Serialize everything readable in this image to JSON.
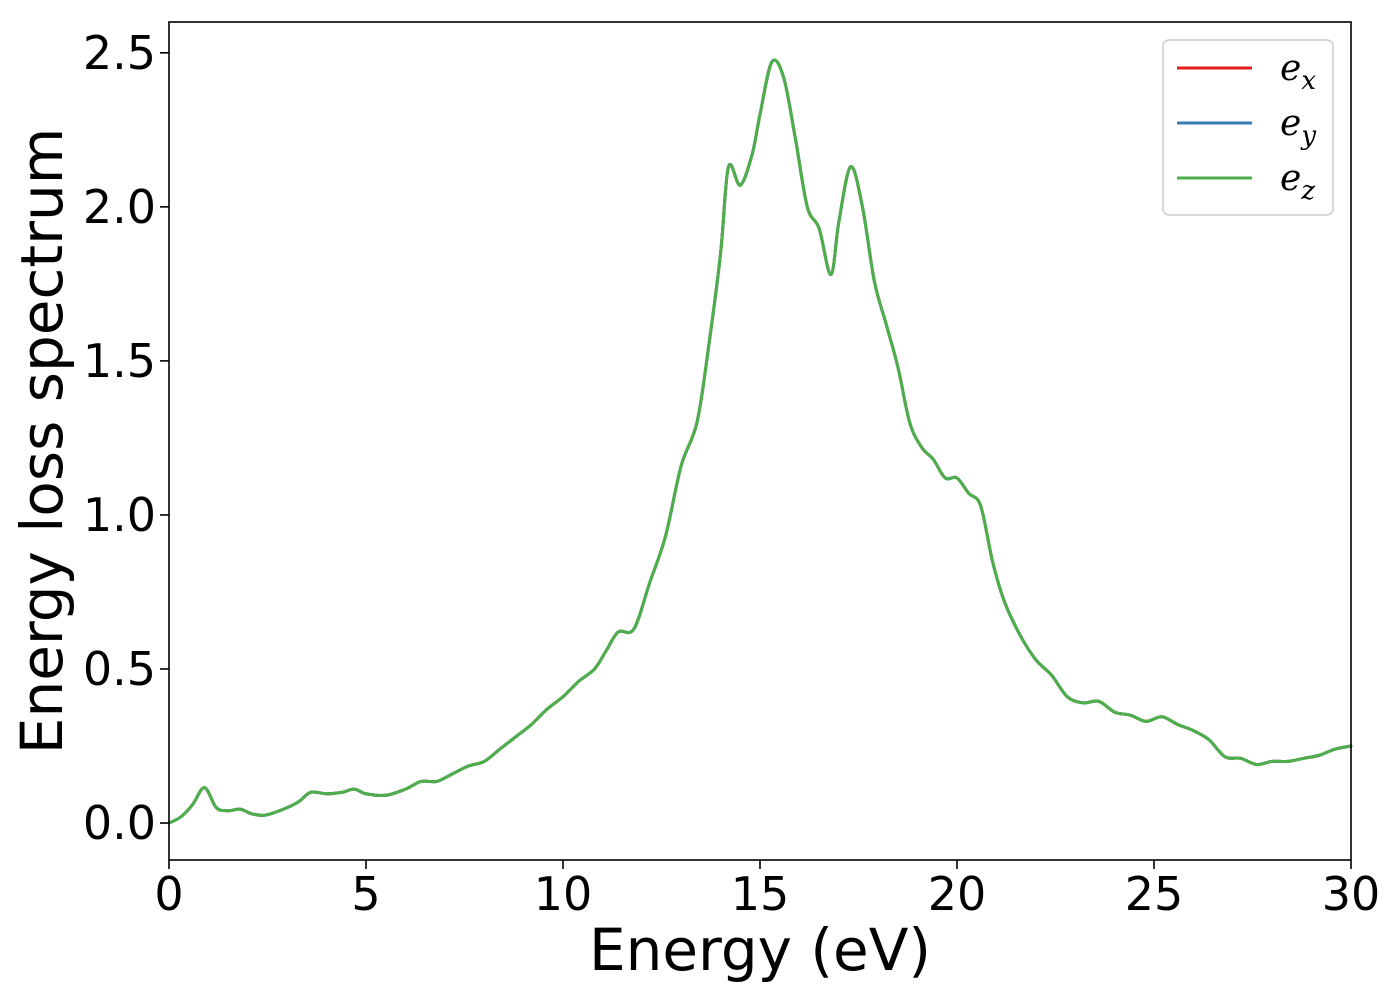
{
  "chart_data": {
    "type": "line",
    "title": "",
    "xlabel": "Energy (eV)",
    "ylabel": "Energy loss spectrum",
    "xlim": [
      0,
      30
    ],
    "ylim": [
      -0.12,
      2.6
    ],
    "xticks": [
      0,
      5,
      10,
      15,
      20,
      25,
      30
    ],
    "xtick_labels": [
      "0",
      "5",
      "10",
      "15",
      "20",
      "25",
      "30"
    ],
    "yticks": [
      0.0,
      0.5,
      1.0,
      1.5,
      2.0,
      2.5
    ],
    "ytick_labels": [
      "0.0",
      "0.5",
      "1.0",
      "1.5",
      "2.0",
      "2.5"
    ],
    "grid": false,
    "legend": {
      "position": "top-right",
      "entries": [
        {
          "base": "e",
          "sub": "x",
          "color": "#e41a1c"
        },
        {
          "base": "e",
          "sub": "y",
          "color": "#377eb8"
        },
        {
          "base": "e",
          "sub": "z",
          "color": "#4daf4a"
        }
      ]
    },
    "x": [
      0.0,
      0.3,
      0.6,
      0.9,
      1.2,
      1.5,
      1.8,
      2.1,
      2.4,
      2.7,
      3.0,
      3.3,
      3.6,
      4.0,
      4.4,
      4.7,
      5.0,
      5.5,
      6.0,
      6.4,
      6.8,
      7.2,
      7.6,
      8.0,
      8.4,
      8.8,
      9.2,
      9.6,
      10.0,
      10.4,
      10.8,
      11.1,
      11.4,
      11.8,
      12.2,
      12.6,
      13.0,
      13.4,
      13.7,
      14.0,
      14.2,
      14.5,
      14.8,
      15.0,
      15.3,
      15.6,
      15.9,
      16.2,
      16.5,
      16.8,
      17.0,
      17.3,
      17.6,
      17.9,
      18.2,
      18.5,
      18.8,
      19.1,
      19.4,
      19.7,
      20.0,
      20.3,
      20.6,
      20.9,
      21.2,
      21.6,
      22.0,
      22.4,
      22.8,
      23.2,
      23.6,
      24.0,
      24.4,
      24.8,
      25.2,
      25.6,
      26.0,
      26.4,
      26.8,
      27.2,
      27.6,
      28.0,
      28.4,
      28.8,
      29.2,
      29.6,
      30.0
    ],
    "series": [
      {
        "name": "e_x",
        "color": "#e41a1c",
        "values": [
          0.0,
          0.02,
          0.06,
          0.115,
          0.05,
          0.04,
          0.045,
          0.03,
          0.025,
          0.035,
          0.05,
          0.07,
          0.1,
          0.095,
          0.1,
          0.11,
          0.095,
          0.09,
          0.11,
          0.135,
          0.135,
          0.16,
          0.185,
          0.2,
          0.24,
          0.28,
          0.32,
          0.37,
          0.41,
          0.46,
          0.5,
          0.56,
          0.62,
          0.63,
          0.78,
          0.93,
          1.16,
          1.3,
          1.55,
          1.85,
          2.13,
          2.07,
          2.17,
          2.3,
          2.47,
          2.42,
          2.22,
          2.0,
          1.93,
          1.78,
          1.95,
          2.13,
          2.0,
          1.76,
          1.62,
          1.48,
          1.3,
          1.22,
          1.18,
          1.12,
          1.12,
          1.07,
          1.03,
          0.85,
          0.72,
          0.61,
          0.53,
          0.48,
          0.41,
          0.39,
          0.395,
          0.36,
          0.35,
          0.33,
          0.345,
          0.32,
          0.3,
          0.27,
          0.215,
          0.21,
          0.19,
          0.2,
          0.2,
          0.21,
          0.22,
          0.24,
          0.25
        ]
      },
      {
        "name": "e_y",
        "color": "#377eb8",
        "values": [
          0.0,
          0.02,
          0.06,
          0.115,
          0.05,
          0.04,
          0.045,
          0.03,
          0.025,
          0.035,
          0.05,
          0.07,
          0.1,
          0.095,
          0.1,
          0.11,
          0.095,
          0.09,
          0.11,
          0.135,
          0.135,
          0.16,
          0.185,
          0.2,
          0.24,
          0.28,
          0.32,
          0.37,
          0.41,
          0.46,
          0.5,
          0.56,
          0.62,
          0.63,
          0.78,
          0.93,
          1.16,
          1.3,
          1.55,
          1.85,
          2.13,
          2.07,
          2.17,
          2.3,
          2.47,
          2.42,
          2.22,
          2.0,
          1.93,
          1.78,
          1.95,
          2.13,
          2.0,
          1.76,
          1.62,
          1.48,
          1.3,
          1.22,
          1.18,
          1.12,
          1.12,
          1.07,
          1.03,
          0.85,
          0.72,
          0.61,
          0.53,
          0.48,
          0.41,
          0.39,
          0.395,
          0.36,
          0.35,
          0.33,
          0.345,
          0.32,
          0.3,
          0.27,
          0.215,
          0.21,
          0.19,
          0.2,
          0.2,
          0.21,
          0.22,
          0.24,
          0.25
        ]
      },
      {
        "name": "e_z",
        "color": "#4daf4a",
        "values": [
          0.0,
          0.02,
          0.06,
          0.115,
          0.05,
          0.04,
          0.045,
          0.03,
          0.025,
          0.035,
          0.05,
          0.07,
          0.1,
          0.095,
          0.1,
          0.11,
          0.095,
          0.09,
          0.11,
          0.135,
          0.135,
          0.16,
          0.185,
          0.2,
          0.24,
          0.28,
          0.32,
          0.37,
          0.41,
          0.46,
          0.5,
          0.56,
          0.62,
          0.63,
          0.78,
          0.93,
          1.16,
          1.3,
          1.55,
          1.85,
          2.13,
          2.07,
          2.17,
          2.3,
          2.47,
          2.42,
          2.22,
          2.0,
          1.93,
          1.78,
          1.95,
          2.13,
          2.0,
          1.76,
          1.62,
          1.48,
          1.3,
          1.22,
          1.18,
          1.12,
          1.12,
          1.07,
          1.03,
          0.85,
          0.72,
          0.61,
          0.53,
          0.48,
          0.41,
          0.39,
          0.395,
          0.36,
          0.35,
          0.33,
          0.345,
          0.32,
          0.3,
          0.27,
          0.215,
          0.21,
          0.19,
          0.2,
          0.2,
          0.21,
          0.22,
          0.24,
          0.25
        ]
      }
    ]
  }
}
